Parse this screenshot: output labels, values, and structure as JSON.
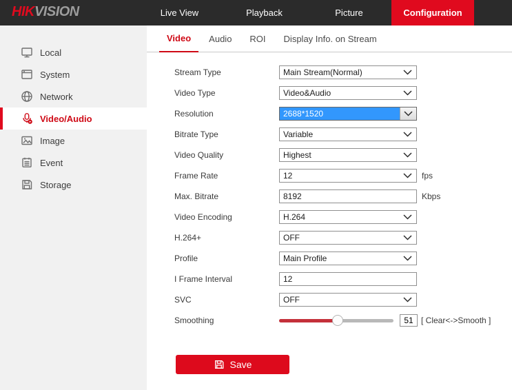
{
  "brand": {
    "logo_hik": "HIK",
    "logo_vision": "VISION"
  },
  "topnav": {
    "items": [
      {
        "label": "Live View",
        "active": false
      },
      {
        "label": "Playback",
        "active": false
      },
      {
        "label": "Picture",
        "active": false
      },
      {
        "label": "Configuration",
        "active": true
      }
    ]
  },
  "sidebar": {
    "items": [
      {
        "label": "Local",
        "icon": "monitor-icon",
        "active": false
      },
      {
        "label": "System",
        "icon": "window-icon",
        "active": false
      },
      {
        "label": "Network",
        "icon": "globe-icon",
        "active": false
      },
      {
        "label": "Video/Audio",
        "icon": "microphone-icon",
        "active": true
      },
      {
        "label": "Image",
        "icon": "image-icon",
        "active": false
      },
      {
        "label": "Event",
        "icon": "event-icon",
        "active": false
      },
      {
        "label": "Storage",
        "icon": "storage-icon",
        "active": false
      }
    ]
  },
  "tabs": [
    {
      "label": "Video",
      "active": true
    },
    {
      "label": "Audio",
      "active": false
    },
    {
      "label": "ROI",
      "active": false
    },
    {
      "label": "Display Info. on Stream",
      "active": false
    }
  ],
  "form": {
    "rows": [
      {
        "label": "Stream Type",
        "type": "select",
        "value": "Main Stream(Normal)"
      },
      {
        "label": "Video Type",
        "type": "select",
        "value": "Video&Audio"
      },
      {
        "label": "Resolution",
        "type": "select",
        "value": "2688*1520",
        "selected": true
      },
      {
        "label": "Bitrate Type",
        "type": "select",
        "value": "Variable"
      },
      {
        "label": "Video Quality",
        "type": "select",
        "value": "Highest"
      },
      {
        "label": "Frame Rate",
        "type": "select",
        "value": "12",
        "suffix": "fps"
      },
      {
        "label": "Max. Bitrate",
        "type": "input",
        "value": "8192",
        "suffix": "Kbps"
      },
      {
        "label": "Video Encoding",
        "type": "select",
        "value": "H.264"
      },
      {
        "label": "H.264+",
        "type": "select",
        "value": "OFF"
      },
      {
        "label": "Profile",
        "type": "select",
        "value": "Main Profile"
      },
      {
        "label": "I Frame Interval",
        "type": "input",
        "value": "12"
      },
      {
        "label": "SVC",
        "type": "select",
        "value": "OFF"
      },
      {
        "label": "Smoothing",
        "type": "slider",
        "value": "51",
        "hint": "[ Clear<->Smooth ]"
      }
    ]
  },
  "save": {
    "label": "Save"
  },
  "colors": {
    "brand_red": "#e00a1e",
    "active_text_red": "#cf0915",
    "slider_red": "#c4303a",
    "selection_blue": "#3297fd",
    "topbar_bg": "#2b2b2b",
    "sidebar_bg": "#f1f1f1"
  }
}
